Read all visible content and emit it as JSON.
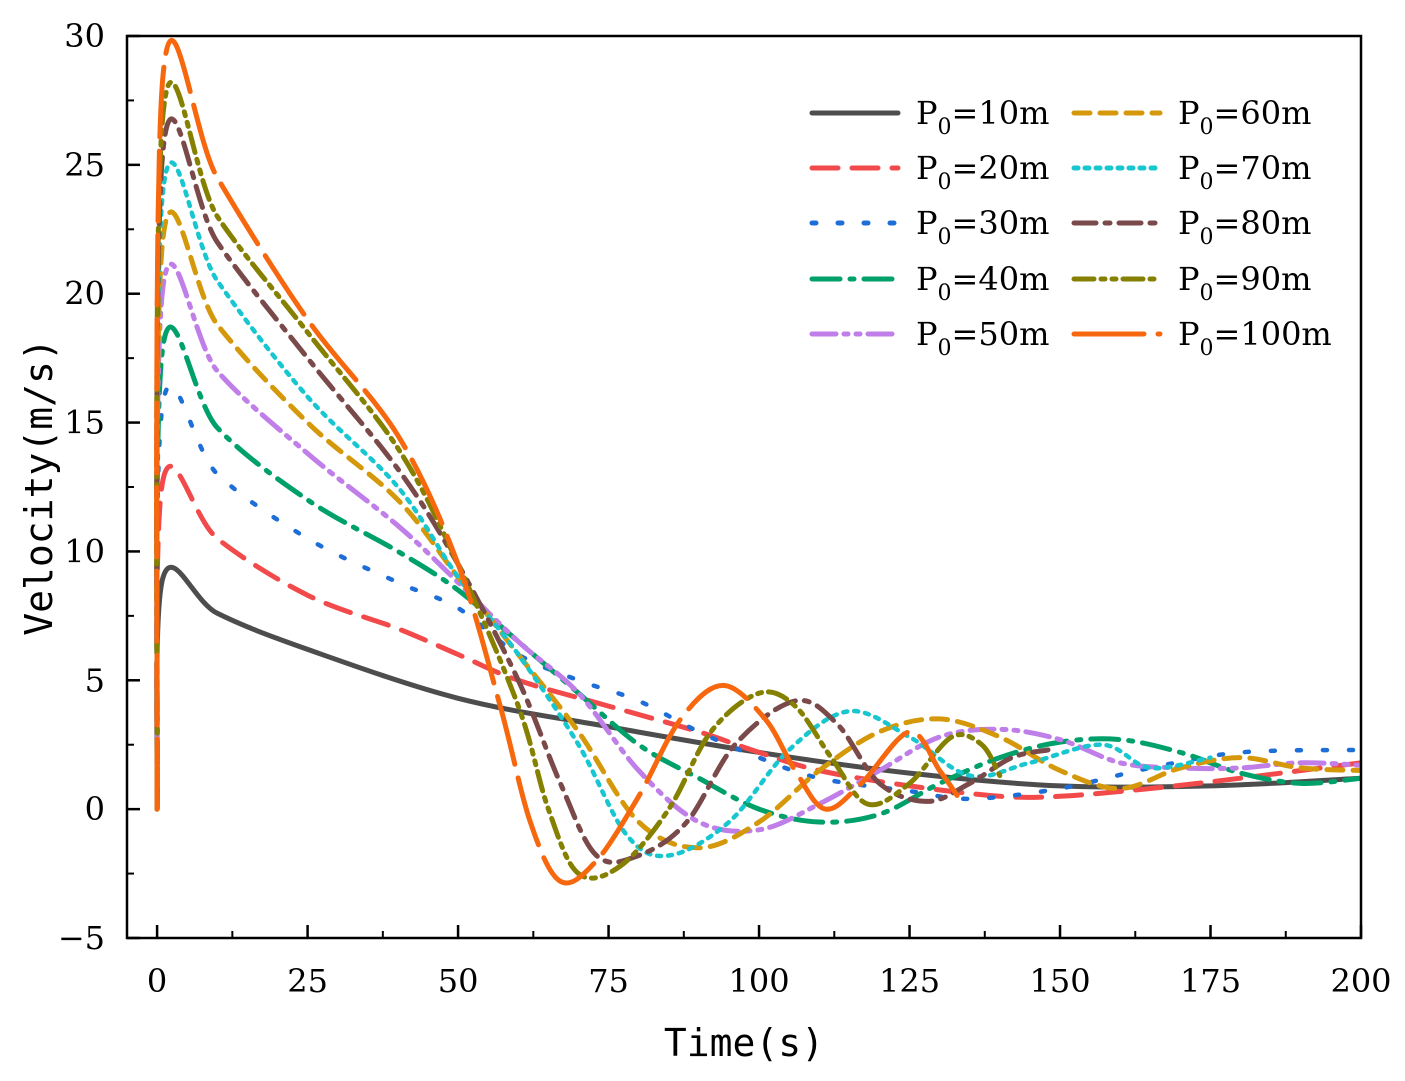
{
  "chart_data": {
    "type": "line",
    "title": "",
    "xlabel": "Time(s)",
    "ylabel": "Velocity(m/s)",
    "xlim": [
      -5,
      200
    ],
    "ylim": [
      -5,
      30
    ],
    "x_ticks": [
      0,
      25,
      50,
      75,
      100,
      125,
      150,
      175,
      200
    ],
    "y_ticks": [
      -5,
      0,
      5,
      10,
      15,
      20,
      25,
      30
    ],
    "x_tick_labels": [
      "0",
      "25",
      "50",
      "75",
      "100",
      "125",
      "150",
      "175",
      "200"
    ],
    "y_tick_labels": [
      "−5",
      "0",
      "5",
      "10",
      "15",
      "20",
      "25",
      "30"
    ],
    "legend_position": "top-right",
    "series": [
      {
        "name": "P0=10m",
        "label_main": "P",
        "label_sub": "0",
        "label_tail": "=10m",
        "color": "#4d4d4d",
        "dash": "solid",
        "points": [
          [
            0,
            0
          ],
          [
            1,
            9
          ],
          [
            10,
            7.6
          ],
          [
            25,
            6.2
          ],
          [
            50,
            4.3
          ],
          [
            75,
            3.2
          ],
          [
            100,
            2.2
          ],
          [
            125,
            1.4
          ],
          [
            150,
            0.9
          ],
          [
            175,
            0.9
          ],
          [
            200,
            1.2
          ]
        ]
      },
      {
        "name": "P0=20m",
        "label_main": "P",
        "label_sub": "0",
        "label_tail": "=20m",
        "color": "#f24a4a",
        "dash": "dash",
        "points": [
          [
            0,
            0
          ],
          [
            1,
            12.8
          ],
          [
            10,
            10.5
          ],
          [
            25,
            8.3
          ],
          [
            40,
            7
          ],
          [
            50,
            6
          ],
          [
            60,
            5
          ],
          [
            75,
            4
          ],
          [
            90,
            3
          ],
          [
            100,
            2.2
          ],
          [
            110,
            1.5
          ],
          [
            125,
            0.9
          ],
          [
            140,
            0.5
          ],
          [
            150,
            0.5
          ],
          [
            165,
            0.8
          ],
          [
            180,
            1.2
          ],
          [
            200,
            1.8
          ]
        ]
      },
      {
        "name": "P0=30m",
        "label_main": "P",
        "label_sub": "0",
        "label_tail": "=30m",
        "color": "#1e6ed8",
        "dash": "dot-sparse",
        "points": [
          [
            0,
            0
          ],
          [
            1,
            15.8
          ],
          [
            10,
            13
          ],
          [
            25,
            10.5
          ],
          [
            40,
            8.8
          ],
          [
            50,
            7.8
          ],
          [
            60,
            6
          ],
          [
            70,
            5
          ],
          [
            80,
            4.2
          ],
          [
            90,
            3
          ],
          [
            100,
            2
          ],
          [
            110,
            1.2
          ],
          [
            125,
            0.7
          ],
          [
            135,
            0.4
          ],
          [
            150,
            0.8
          ],
          [
            165,
            1.6
          ],
          [
            180,
            2.2
          ],
          [
            200,
            2.3
          ]
        ]
      },
      {
        "name": "P0=40m",
        "label_main": "P",
        "label_sub": "0",
        "label_tail": "=40m",
        "color": "#00a06a",
        "dash": "dashdot",
        "points": [
          [
            0,
            0
          ],
          [
            1,
            18
          ],
          [
            10,
            14.8
          ],
          [
            25,
            12
          ],
          [
            40,
            10
          ],
          [
            50,
            8.5
          ],
          [
            60,
            6.5
          ],
          [
            70,
            4.5
          ],
          [
            80,
            2.5
          ],
          [
            90,
            1.2
          ],
          [
            100,
            0
          ],
          [
            110,
            -0.5
          ],
          [
            120,
            -0.2
          ],
          [
            130,
            1
          ],
          [
            140,
            2
          ],
          [
            150,
            2.6
          ],
          [
            160,
            2.7
          ],
          [
            170,
            2.2
          ],
          [
            180,
            1.4
          ],
          [
            190,
            1.0
          ],
          [
            200,
            1.2
          ]
        ]
      },
      {
        "name": "P0=50m",
        "label_main": "P",
        "label_sub": "0",
        "label_tail": "=50m",
        "color": "#c07ee8",
        "dash": "dashdotdot",
        "points": [
          [
            0,
            0
          ],
          [
            1,
            20.3
          ],
          [
            10,
            17
          ],
          [
            25,
            13.8
          ],
          [
            40,
            11
          ],
          [
            50,
            8.8
          ],
          [
            60,
            6.5
          ],
          [
            70,
            4.5
          ],
          [
            80,
            1.5
          ],
          [
            90,
            -0.5
          ],
          [
            100,
            -0.8
          ],
          [
            110,
            0.2
          ],
          [
            120,
            1.5
          ],
          [
            130,
            2.8
          ],
          [
            140,
            3.1
          ],
          [
            150,
            2.7
          ],
          [
            160,
            1.8
          ],
          [
            170,
            1.6
          ],
          [
            180,
            1.6
          ],
          [
            190,
            1.8
          ],
          [
            200,
            1.7
          ]
        ]
      },
      {
        "name": "P0=60m",
        "label_main": "P",
        "label_sub": "0",
        "label_tail": "=60m",
        "color": "#d4980a",
        "dash": "dash-short",
        "points": [
          [
            0,
            0
          ],
          [
            1,
            22.2
          ],
          [
            10,
            18.8
          ],
          [
            25,
            15
          ],
          [
            40,
            12
          ],
          [
            50,
            9
          ],
          [
            60,
            6
          ],
          [
            70,
            3
          ],
          [
            80,
            -0.5
          ],
          [
            90,
            -1.5
          ],
          [
            100,
            -0.5
          ],
          [
            110,
            1.5
          ],
          [
            120,
            3
          ],
          [
            130,
            3.5
          ],
          [
            140,
            2.8
          ],
          [
            150,
            1.5
          ],
          [
            160,
            0.8
          ],
          [
            170,
            1.6
          ],
          [
            180,
            2.0
          ],
          [
            190,
            1.6
          ],
          [
            200,
            1.5
          ]
        ]
      },
      {
        "name": "P0=70m",
        "label_main": "P",
        "label_sub": "0",
        "label_tail": "=70m",
        "color": "#18c6cf",
        "dash": "dot",
        "points": [
          [
            0,
            0
          ],
          [
            1,
            24
          ],
          [
            10,
            20.5
          ],
          [
            25,
            16
          ],
          [
            40,
            12.5
          ],
          [
            50,
            9
          ],
          [
            60,
            6
          ],
          [
            70,
            2.5
          ],
          [
            78,
            -1
          ],
          [
            85,
            -1.8
          ],
          [
            95,
            -0.5
          ],
          [
            105,
            2.3
          ],
          [
            115,
            3.8
          ],
          [
            125,
            2.8
          ],
          [
            135,
            1.3
          ],
          [
            145,
            1.8
          ],
          [
            157,
            2.5
          ],
          [
            165,
            1.6
          ],
          [
            175,
            2.0
          ]
        ]
      },
      {
        "name": "P0=80m",
        "label_main": "P",
        "label_sub": "0",
        "label_tail": "=80m",
        "color": "#7a4a4a",
        "dash": "dashdot-long",
        "points": [
          [
            0,
            0
          ],
          [
            1,
            25.6
          ],
          [
            10,
            22
          ],
          [
            25,
            17.5
          ],
          [
            40,
            13.2
          ],
          [
            50,
            9.5
          ],
          [
            60,
            5
          ],
          [
            67,
            1
          ],
          [
            73,
            -1.8
          ],
          [
            80,
            -1.8
          ],
          [
            88,
            -0.5
          ],
          [
            96,
            2.5
          ],
          [
            106,
            4.2
          ],
          [
            113,
            3.3
          ],
          [
            120,
            1
          ],
          [
            128,
            0.3
          ],
          [
            135,
            1
          ],
          [
            142,
            2
          ],
          [
            148,
            2.3
          ]
        ]
      },
      {
        "name": "P0=90m",
        "label_main": "P",
        "label_sub": "0",
        "label_tail": "=90m",
        "color": "#868000",
        "dash": "dashdotdot-long",
        "points": [
          [
            0,
            0
          ],
          [
            1,
            27
          ],
          [
            10,
            23
          ],
          [
            25,
            18.5
          ],
          [
            40,
            14
          ],
          [
            50,
            9.5
          ],
          [
            60,
            4
          ],
          [
            65,
            0
          ],
          [
            70,
            -2.5
          ],
          [
            77,
            -2.2
          ],
          [
            85,
            0
          ],
          [
            92,
            3
          ],
          [
            100,
            4.5
          ],
          [
            106,
            4.0
          ],
          [
            112,
            2
          ],
          [
            118,
            0.2
          ],
          [
            125,
            1
          ],
          [
            132,
            2.8
          ],
          [
            137,
            2.5
          ],
          [
            140,
            1.3
          ]
        ]
      },
      {
        "name": "P0=100m",
        "label_main": "P",
        "label_sub": "0",
        "label_tail": "=100m",
        "color": "#f7680e",
        "dash": "dash-long",
        "points": [
          [
            0,
            0
          ],
          [
            1,
            28.5
          ],
          [
            10,
            24.5
          ],
          [
            25,
            19
          ],
          [
            40,
            14.5
          ],
          [
            50,
            9.5
          ],
          [
            57,
            4
          ],
          [
            62,
            -0.5
          ],
          [
            67,
            -2.8
          ],
          [
            73,
            -2
          ],
          [
            80,
            0.5
          ],
          [
            87,
            3.5
          ],
          [
            94,
            4.8
          ],
          [
            101,
            3.5
          ],
          [
            106,
            1.5
          ],
          [
            111,
            0
          ],
          [
            117,
            1
          ],
          [
            125,
            3
          ],
          [
            130,
            1.5
          ],
          [
            133,
            0.5
          ]
        ]
      }
    ]
  }
}
